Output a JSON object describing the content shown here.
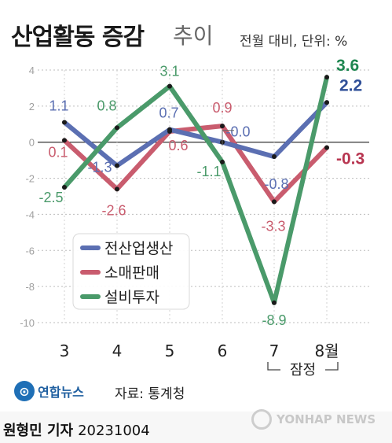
{
  "header": {
    "title": "산업활동 증감",
    "title_sub": "추이",
    "unit": "전월 대비, 단위: %"
  },
  "footer": {
    "logo_text": "연합뉴스",
    "source": "자료: 통계청",
    "reporter": "원형민 기자",
    "date": "20231004",
    "watermark": "YONHAP NEWS"
  },
  "chart_data": {
    "type": "line",
    "title": "산업활동 증감 추이",
    "xlabel": "",
    "ylabel": "",
    "categories": [
      "3",
      "4",
      "5",
      "6",
      "7",
      "8월"
    ],
    "ylim": [
      -10,
      4
    ],
    "yticks": [
      "4",
      "2",
      "0",
      "-2",
      "-4",
      "-6",
      "-8",
      "-10"
    ],
    "ytick_values": [
      4,
      2,
      0,
      -2,
      -4,
      -6,
      -8,
      -10
    ],
    "bracket_label": "잠정",
    "grid": true,
    "legend_position": "center-left",
    "series": [
      {
        "name": "전산업생산",
        "color": "#5b6fb2",
        "end_color": "#2f4f98",
        "values": [
          1.1,
          -1.3,
          0.7,
          0.0,
          -0.8,
          2.2
        ],
        "labels": [
          "1.1",
          "-1.3",
          "0.7",
          "-0.0",
          "-0.8",
          "2.2"
        ]
      },
      {
        "name": "소매판매",
        "color": "#c95c6e",
        "end_color": "#b83550",
        "values": [
          0.1,
          -2.6,
          0.6,
          0.9,
          -3.3,
          -0.3
        ],
        "labels": [
          "0.1",
          "-2.6",
          "0.6",
          "0.9",
          "-3.3",
          "-0.3"
        ]
      },
      {
        "name": "설비투자",
        "color": "#4a9a6a",
        "end_color": "#1e8650",
        "values": [
          -2.5,
          0.8,
          3.1,
          -1.1,
          -8.9,
          3.6
        ],
        "labels": [
          "-2.5",
          "0.8",
          "3.1",
          "-1.1",
          "-8.9",
          "3.6"
        ]
      }
    ],
    "label_colors": {
      "axis": "#a0a0a0",
      "tick": "#222222"
    }
  }
}
